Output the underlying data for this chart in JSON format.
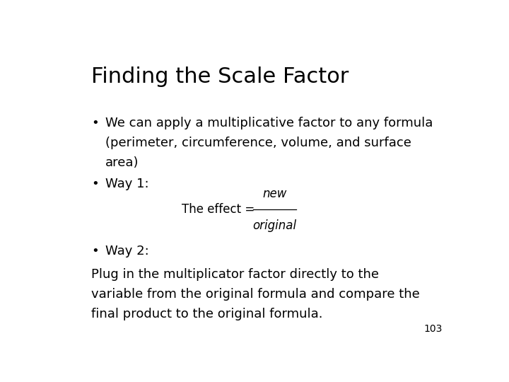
{
  "title": "Finding the Scale Factor",
  "background_color": "#ffffff",
  "text_color": "#000000",
  "title_fontsize": 22,
  "body_fontsize": 13,
  "formula_fontsize": 12,
  "bullet1_line1": "We can apply a multiplicative factor to any formula",
  "bullet1_line2": "(perimeter, circumference, volume, and surface",
  "bullet1_line3": "area)",
  "bullet2": "Way 1:",
  "formula_prefix": "The effect = ",
  "formula_numerator": "new",
  "formula_denominator": "original",
  "bullet3": "Way 2:",
  "para_line1": "Plug in the multiplicator factor directly to the",
  "para_line2": "variable from the original formula and compare the",
  "para_line3": "final product to the original formula.",
  "page_number": "103",
  "page_fontsize": 10
}
